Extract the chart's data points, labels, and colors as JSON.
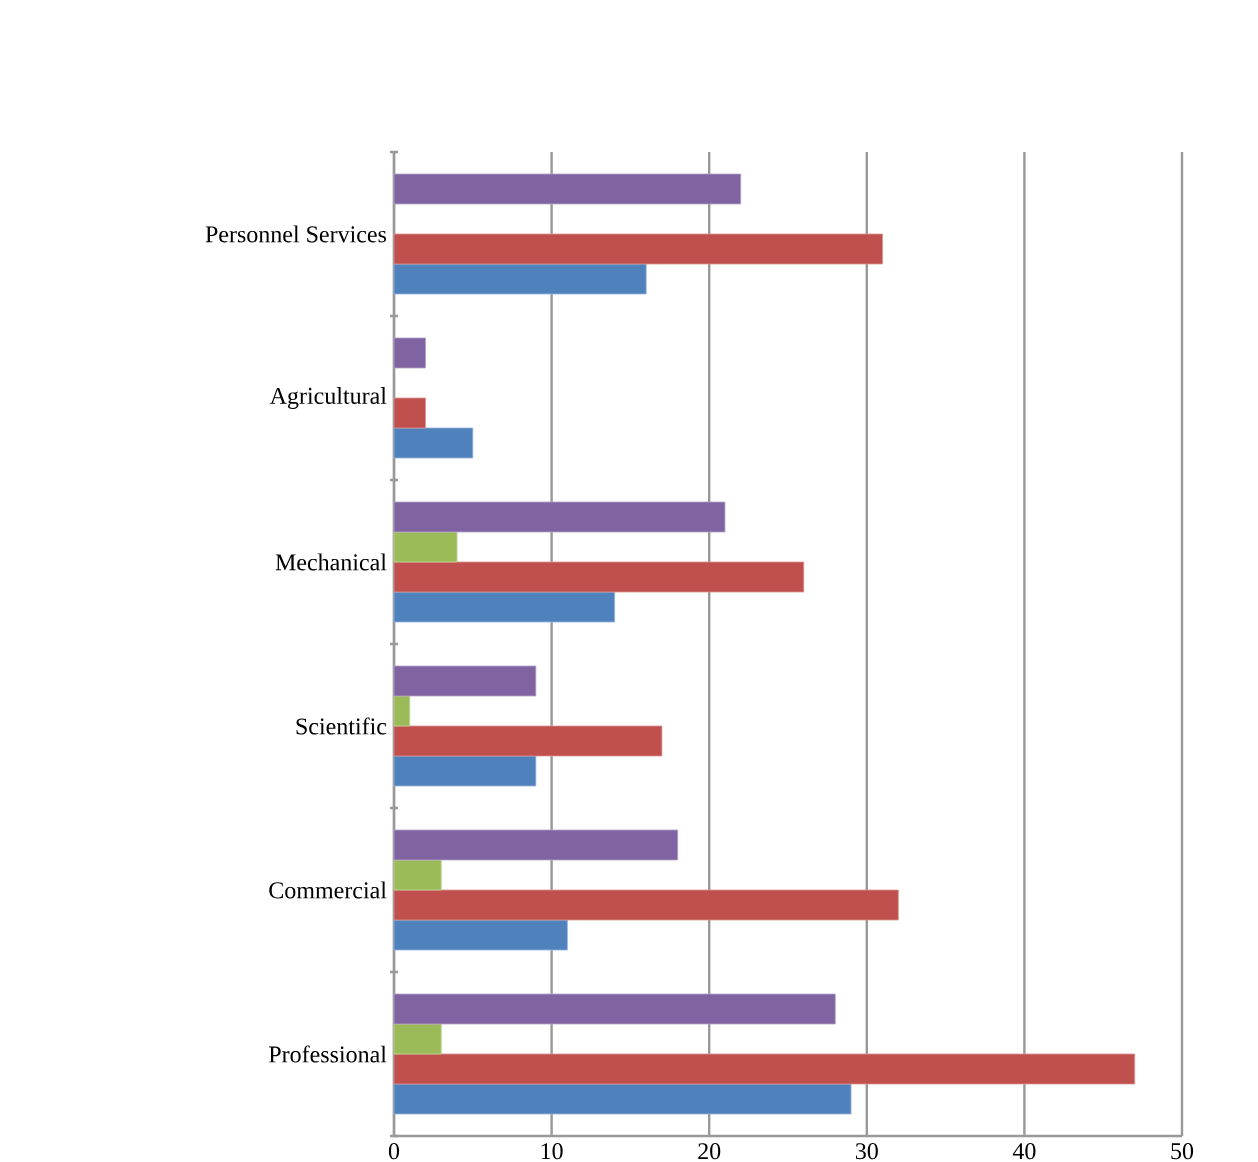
{
  "chart_data": {
    "type": "bar",
    "orientation": "horizontal",
    "categories": [
      "Personnel Services",
      "Agricultural",
      "Mechanical",
      "Scientific",
      "Commercial",
      "Professional"
    ],
    "series": [
      {
        "color": "#4f81bd",
        "values": [
          16,
          5,
          14,
          9,
          11,
          29
        ]
      },
      {
        "color": "#c0504d",
        "values": [
          31,
          2,
          26,
          17,
          32,
          47
        ]
      },
      {
        "color": "#9bbb59",
        "values": [
          null,
          null,
          4,
          1,
          3,
          3
        ]
      },
      {
        "color": "#8064a2",
        "values": [
          22,
          2,
          21,
          9,
          18,
          28
        ]
      }
    ],
    "xlim": [
      0,
      50
    ],
    "xticks": [
      0,
      10,
      20,
      30,
      40,
      50
    ],
    "grid": "x"
  }
}
